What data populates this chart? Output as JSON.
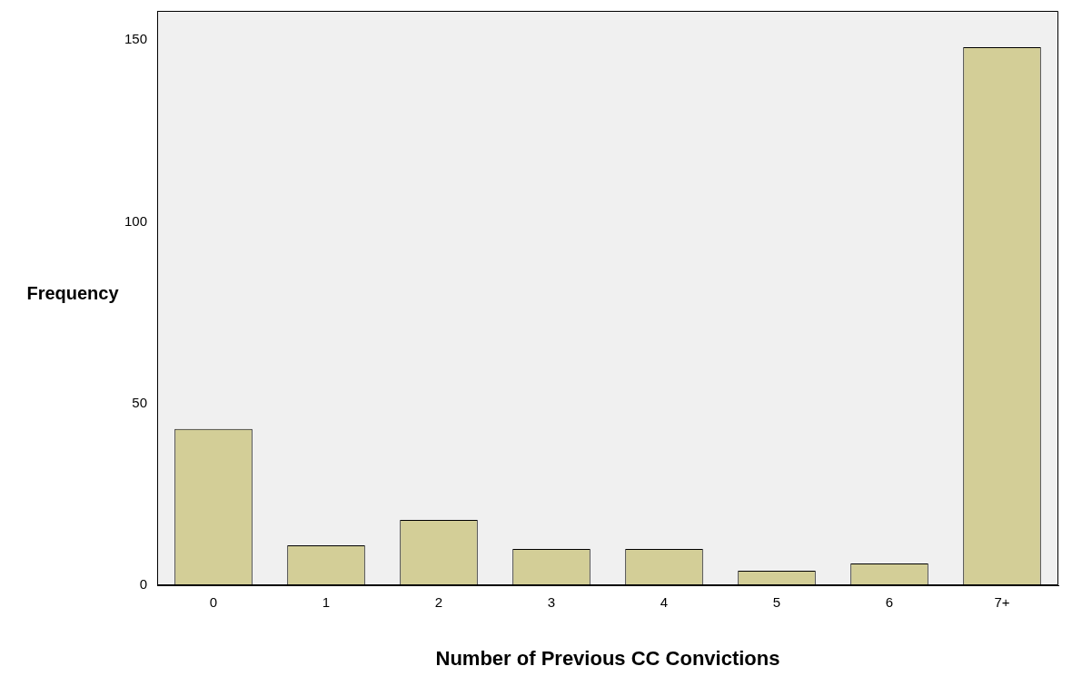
{
  "chart_data": {
    "type": "bar",
    "xlabel": "Number of Previous CC Convictions",
    "ylabel": "Frequency",
    "categories": [
      "0",
      "1",
      "2",
      "3",
      "4",
      "5",
      "6",
      "7+"
    ],
    "values": [
      43,
      11,
      18,
      10,
      10,
      4,
      6,
      148
    ],
    "color": "#d3ce97",
    "ylim": [
      0,
      158
    ],
    "yticks": [
      0,
      50,
      100,
      150
    ],
    "grid": false,
    "legend": false
  }
}
